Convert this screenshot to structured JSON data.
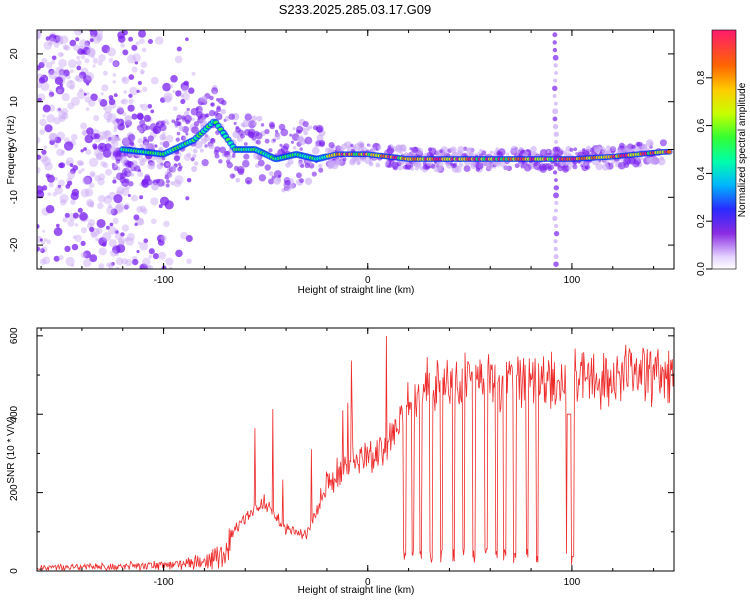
{
  "title": "S233.2025.285.03.17.G09",
  "colors": {
    "snr_line": "#ee2b2b",
    "spec_purple": "#7a1ff0",
    "spec_light": "#c9a8f7"
  },
  "chart_data": [
    {
      "type": "heatmap",
      "name": "spectrogram",
      "xlabel": "Height of straight line (km)",
      "ylabel": "Frequency (Hz)",
      "xlim": [
        -162,
        150
      ],
      "ylim": [
        -25,
        25
      ],
      "xticks": [
        -100,
        0,
        100
      ],
      "yticks": [
        -20,
        -10,
        0,
        10,
        20
      ],
      "ridge": {
        "x": [
          -120,
          -100,
          -85,
          -75,
          -65,
          -55,
          -45,
          -35,
          -25,
          -15,
          0,
          20,
          50,
          80,
          100,
          120,
          145
        ],
        "freq_hz": [
          0,
          -1,
          2,
          6,
          0,
          0,
          -2,
          -1,
          -2,
          -1,
          -1,
          -2,
          -2,
          -2,
          -2,
          -1.5,
          -0.5
        ]
      },
      "vertical_artifact_x_km": 92,
      "colorbar": {
        "label": "Normalized spectral amplitude",
        "ticks": [
          0.0,
          0.2,
          0.4,
          0.6,
          0.8
        ],
        "tick_labels": [
          "0.0",
          "0.2",
          "0.4",
          "0.6",
          "0.8"
        ],
        "range": [
          0,
          1
        ]
      }
    },
    {
      "type": "line",
      "name": "snr",
      "xlabel": "Height of straight line (km)",
      "ylabel": "SNR (10 * V/V)",
      "xlim": [
        -162,
        150
      ],
      "ylim": [
        0,
        620
      ],
      "xticks": [
        -100,
        0,
        100
      ],
      "yticks": [
        0,
        200,
        400,
        600
      ],
      "envelope": {
        "x": [
          -162,
          -120,
          -90,
          -80,
          -70,
          -60,
          -50,
          -40,
          -30,
          -20,
          -10,
          0,
          10,
          20,
          30,
          40,
          60,
          80,
          90,
          100,
          110,
          130,
          150
        ],
        "y": [
          15,
          20,
          30,
          40,
          80,
          150,
          200,
          120,
          100,
          250,
          300,
          330,
          360,
          470,
          530,
          540,
          545,
          545,
          545,
          550,
          550,
          555,
          560
        ]
      },
      "dropouts_x_km": [
        18,
        22,
        26,
        31,
        36,
        42,
        47,
        52,
        58,
        63,
        67,
        72,
        78,
        83,
        98,
        100
      ]
    }
  ]
}
